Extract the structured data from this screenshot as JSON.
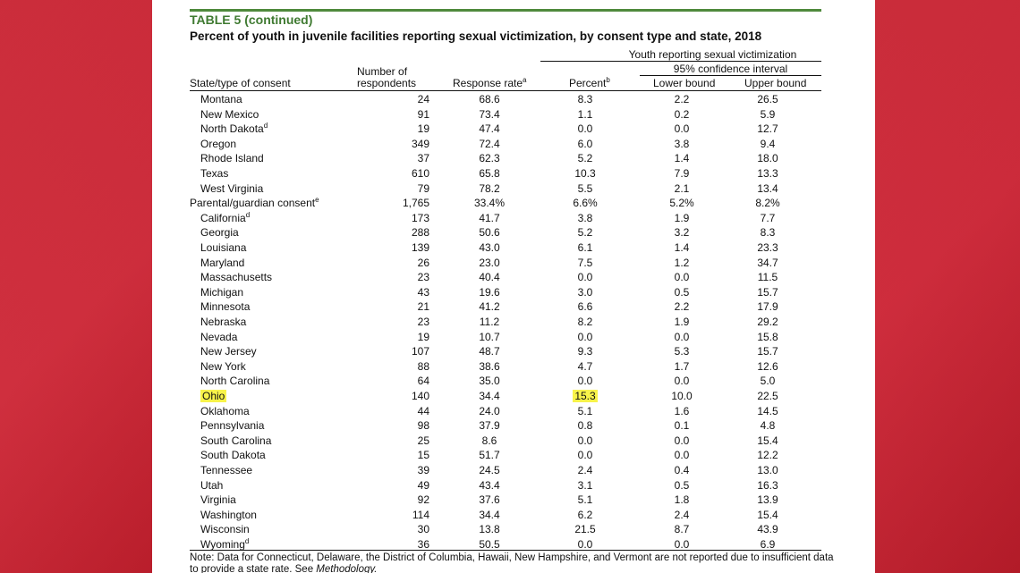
{
  "table": {
    "label": "TABLE 5 (continued)",
    "caption": "Percent of youth in juvenile facilities reporting sexual victimization, by consent type and state, 2018",
    "group_header": "Youth reporting sexual victimization",
    "ci_header": "95% confidence interval",
    "columns": {
      "state": "State/type of consent",
      "respondents_line1": "Number of",
      "respondents_line2": "respondents",
      "response_rate": "Response rate",
      "response_rate_sup": "a",
      "percent": "Percent",
      "percent_sup": "b",
      "lower": "Lower bound",
      "upper": "Upper bound"
    },
    "rows": [
      {
        "name": "Montana",
        "sup": "",
        "n": "24",
        "rr": "68.6",
        "p": "8.3",
        "lb": "2.2",
        "ub": "26.5"
      },
      {
        "name": "New Mexico",
        "sup": "",
        "n": "91",
        "rr": "73.4",
        "p": "1.1",
        "lb": "0.2",
        "ub": "5.9"
      },
      {
        "name": "North Dakota",
        "sup": "d",
        "n": "19",
        "rr": "47.4",
        "p": "0.0",
        "lb": "0.0",
        "ub": "12.7"
      },
      {
        "name": "Oregon",
        "sup": "",
        "n": "349",
        "rr": "72.4",
        "p": "6.0",
        "lb": "3.8",
        "ub": "9.4"
      },
      {
        "name": "Rhode Island",
        "sup": "",
        "n": "37",
        "rr": "62.3",
        "p": "5.2",
        "lb": "1.4",
        "ub": "18.0"
      },
      {
        "name": "Texas",
        "sup": "",
        "n": "610",
        "rr": "65.8",
        "p": "10.3",
        "lb": "7.9",
        "ub": "13.3"
      },
      {
        "name": "West Virginia",
        "sup": "",
        "n": "79",
        "rr": "78.2",
        "p": "5.5",
        "lb": "2.1",
        "ub": "13.4"
      },
      {
        "name": "Parental/guardian consent",
        "sup": "e",
        "n": "1,765",
        "rr": "33.4%",
        "p": "6.6%",
        "lb": "5.2%",
        "ub": "8.2%",
        "group": true
      },
      {
        "name": "California",
        "sup": "d",
        "n": "173",
        "rr": "41.7",
        "p": "3.8",
        "lb": "1.9",
        "ub": "7.7"
      },
      {
        "name": "Georgia",
        "sup": "",
        "n": "288",
        "rr": "50.6",
        "p": "5.2",
        "lb": "3.2",
        "ub": "8.3"
      },
      {
        "name": "Louisiana",
        "sup": "",
        "n": "139",
        "rr": "43.0",
        "p": "6.1",
        "lb": "1.4",
        "ub": "23.3"
      },
      {
        "name": "Maryland",
        "sup": "",
        "n": "26",
        "rr": "23.0",
        "p": "7.5",
        "lb": "1.2",
        "ub": "34.7"
      },
      {
        "name": "Massachusetts",
        "sup": "",
        "n": "23",
        "rr": "40.4",
        "p": "0.0",
        "lb": "0.0",
        "ub": "11.5"
      },
      {
        "name": "Michigan",
        "sup": "",
        "n": "43",
        "rr": "19.6",
        "p": "3.0",
        "lb": "0.5",
        "ub": "15.7"
      },
      {
        "name": "Minnesota",
        "sup": "",
        "n": "21",
        "rr": "41.2",
        "p": "6.6",
        "lb": "2.2",
        "ub": "17.9"
      },
      {
        "name": "Nebraska",
        "sup": "",
        "n": "23",
        "rr": "11.2",
        "p": "8.2",
        "lb": "1.9",
        "ub": "29.2"
      },
      {
        "name": "Nevada",
        "sup": "",
        "n": "19",
        "rr": "10.7",
        "p": "0.0",
        "lb": "0.0",
        "ub": "15.8"
      },
      {
        "name": "New Jersey",
        "sup": "",
        "n": "107",
        "rr": "48.7",
        "p": "9.3",
        "lb": "5.3",
        "ub": "15.7"
      },
      {
        "name": "New York",
        "sup": "",
        "n": "88",
        "rr": "38.6",
        "p": "4.7",
        "lb": "1.7",
        "ub": "12.6"
      },
      {
        "name": "North Carolina",
        "sup": "",
        "n": "64",
        "rr": "35.0",
        "p": "0.0",
        "lb": "0.0",
        "ub": "5.0"
      },
      {
        "name": "Ohio",
        "sup": "",
        "n": "140",
        "rr": "34.4",
        "p": "15.3",
        "lb": "10.0",
        "ub": "22.5",
        "highlight": true
      },
      {
        "name": "Oklahoma",
        "sup": "",
        "n": "44",
        "rr": "24.0",
        "p": "5.1",
        "lb": "1.6",
        "ub": "14.5"
      },
      {
        "name": "Pennsylvania",
        "sup": "",
        "n": "98",
        "rr": "37.9",
        "p": "0.8",
        "lb": "0.1",
        "ub": "4.8"
      },
      {
        "name": "South Carolina",
        "sup": "",
        "n": "25",
        "rr": "8.6",
        "p": "0.0",
        "lb": "0.0",
        "ub": "15.4"
      },
      {
        "name": "South Dakota",
        "sup": "",
        "n": "15",
        "rr": "51.7",
        "p": "0.0",
        "lb": "0.0",
        "ub": "12.2"
      },
      {
        "name": "Tennessee",
        "sup": "",
        "n": "39",
        "rr": "24.5",
        "p": "2.4",
        "lb": "0.4",
        "ub": "13.0"
      },
      {
        "name": "Utah",
        "sup": "",
        "n": "49",
        "rr": "43.4",
        "p": "3.1",
        "lb": "0.5",
        "ub": "16.3"
      },
      {
        "name": "Virginia",
        "sup": "",
        "n": "92",
        "rr": "37.6",
        "p": "5.1",
        "lb": "1.8",
        "ub": "13.9"
      },
      {
        "name": "Washington",
        "sup": "",
        "n": "114",
        "rr": "34.4",
        "p": "6.2",
        "lb": "2.4",
        "ub": "15.4"
      },
      {
        "name": "Wisconsin",
        "sup": "",
        "n": "30",
        "rr": "13.8",
        "p": "21.5",
        "lb": "8.7",
        "ub": "43.9"
      },
      {
        "name": "Wyoming",
        "sup": "d",
        "n": "36",
        "rr": "50.5",
        "p": "0.0",
        "lb": "0.0",
        "ub": "6.9"
      }
    ],
    "note_text": "Note: Data for Connecticut, Delaware, the District of Columbia, Hawaii, New Hampshire, and Vermont are not reported due to insufficient data to provide a state rate. See",
    "note_link": "Methodology."
  },
  "colors": {
    "background_red": "#c8202f",
    "title_green": "#3f7a31",
    "highlight_yellow": "#f8f34a"
  }
}
